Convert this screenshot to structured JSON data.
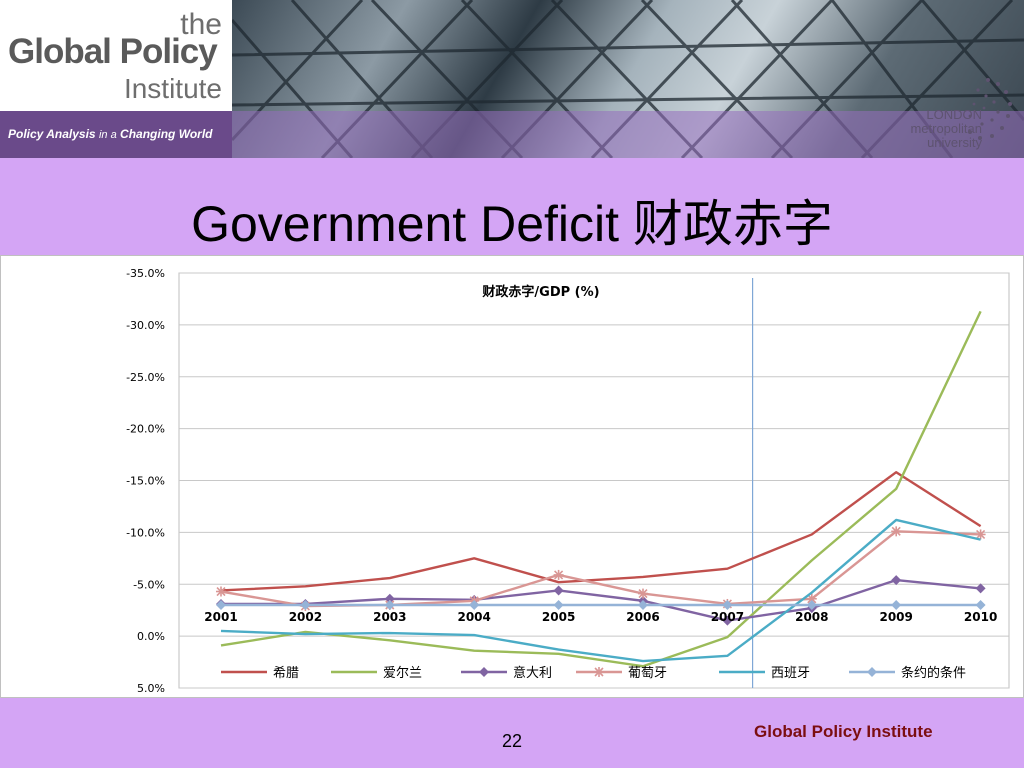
{
  "header": {
    "logo_the": "the",
    "logo_global_policy": "Global Policy",
    "logo_institute": "Institute",
    "tagline_a": "Policy Analysis",
    "tagline_b": "in a",
    "tagline_c": "Changing World",
    "university_lines": [
      "LONDON",
      "metropolitan",
      "university"
    ]
  },
  "slide": {
    "title": "Government Deficit 财政赤字",
    "page_number": "22",
    "footer_brand": "Global Policy Institute"
  },
  "chart_data": {
    "type": "line",
    "title": "财政赤字/GDP (%)",
    "x": [
      "2001",
      "2002",
      "2003",
      "2004",
      "2005",
      "2006",
      "2007",
      "2008",
      "2009",
      "2010"
    ],
    "y_ticks": [
      "-35.0%",
      "-30.0%",
      "-25.0%",
      "-20.0%",
      "-15.0%",
      "-10.0%",
      "-5.0%",
      "0.0%",
      "5.0%"
    ],
    "ylim": [
      -35,
      5
    ],
    "y_inverted": true,
    "vertical_marker_between": [
      "2007",
      "2008"
    ],
    "legend_position": "bottom",
    "series": [
      {
        "name": "希腊",
        "color": "#c0504d",
        "marker": "none",
        "values": [
          -4.4,
          -4.8,
          -5.6,
          -7.5,
          -5.2,
          -5.7,
          -6.5,
          -9.8,
          -15.8,
          -10.6
        ]
      },
      {
        "name": "爱尔兰",
        "color": "#9bbb59",
        "marker": "none",
        "values": [
          0.9,
          -0.4,
          0.4,
          1.4,
          1.7,
          2.9,
          0.1,
          -7.3,
          -14.2,
          -31.3
        ]
      },
      {
        "name": "意大利",
        "color": "#8064a2",
        "marker": "diamond",
        "values": [
          -3.1,
          -3.1,
          -3.6,
          -3.5,
          -4.4,
          -3.4,
          -1.5,
          -2.7,
          -5.4,
          -4.6
        ]
      },
      {
        "name": "葡萄牙",
        "color": "#d99694",
        "marker": "star",
        "values": [
          -4.3,
          -2.9,
          -3.0,
          -3.4,
          -5.9,
          -4.1,
          -3.1,
          -3.6,
          -10.1,
          -9.8
        ]
      },
      {
        "name": "西班牙",
        "color": "#4bacc6",
        "marker": "none",
        "values": [
          -0.5,
          -0.2,
          -0.3,
          -0.1,
          1.3,
          2.4,
          1.9,
          -4.2,
          -11.2,
          -9.3
        ]
      },
      {
        "name": "条约的条件",
        "color": "#95b3d7",
        "marker": "diamond",
        "values": [
          -3.0,
          -3.0,
          -3.0,
          -3.0,
          -3.0,
          -3.0,
          -3.0,
          -3.0,
          -3.0,
          -3.0
        ]
      }
    ]
  }
}
